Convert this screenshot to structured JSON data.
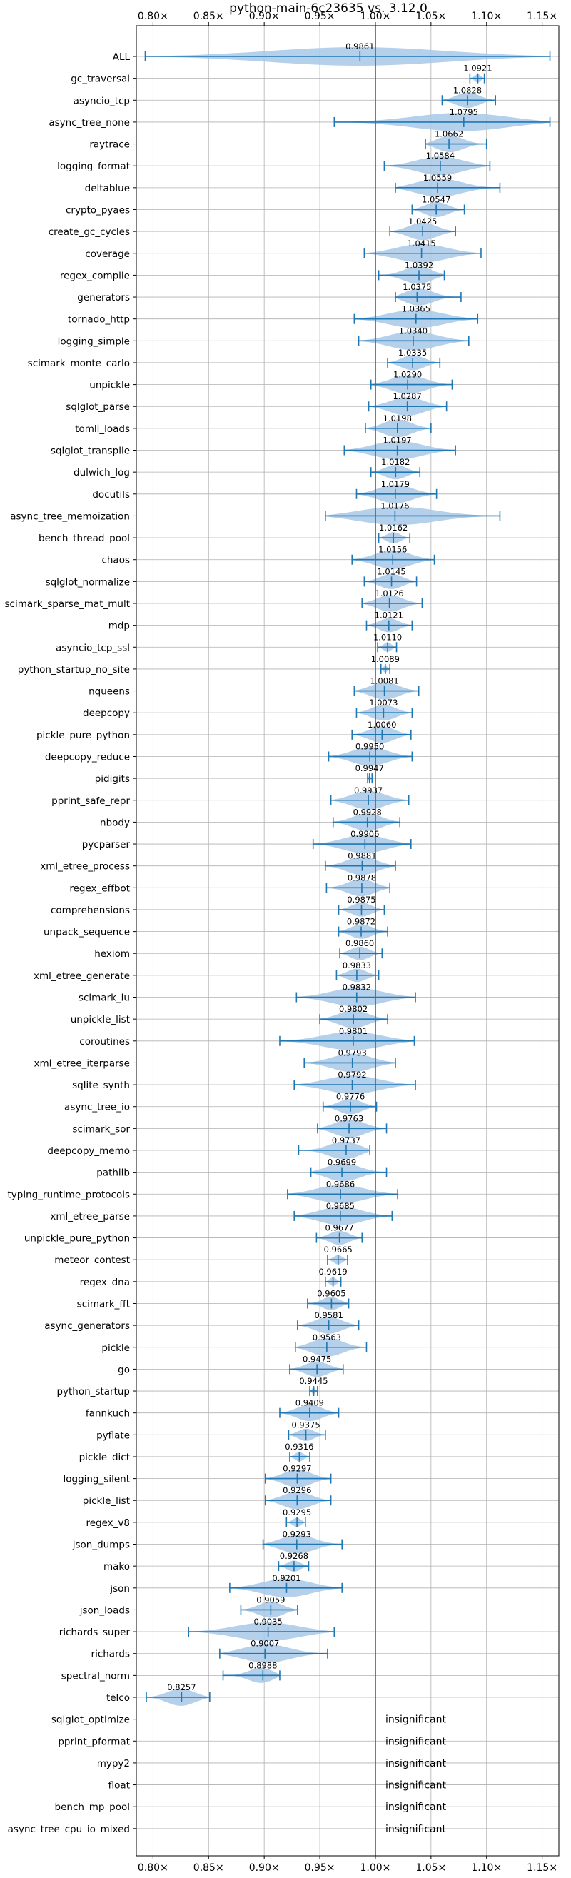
{
  "chart_data": {
    "type": "violin",
    "title": "python-main-6c23635 vs. 3.12.0",
    "xlabel": "",
    "ylabel": "",
    "xlim": [
      0.785,
      1.165
    ],
    "xticks": [
      0.8,
      0.85,
      0.9,
      0.95,
      1.0,
      1.05,
      1.1,
      1.15
    ],
    "xtick_labels": [
      "0.80×",
      "0.85×",
      "0.90×",
      "0.95×",
      "1.00×",
      "1.05×",
      "1.10×",
      "1.15×"
    ],
    "reference_line": 1.0,
    "grid": true,
    "colors": {
      "violin": "#a8c8e6",
      "whisker": "#1f77b4",
      "reference": "#1f77b4",
      "grid": "#b0b0b0"
    },
    "insignificant_label": "insignificant",
    "benchmarks": [
      {
        "name": "ALL",
        "label": "0.9861",
        "value": 0.9861,
        "min": 0.793,
        "max": 1.157
      },
      {
        "name": "gc_traversal",
        "label": "1.0921",
        "value": 1.0921,
        "min": 1.085,
        "max": 1.098
      },
      {
        "name": "asyncio_tcp",
        "label": "1.0828",
        "value": 1.0828,
        "min": 1.06,
        "max": 1.108
      },
      {
        "name": "async_tree_none",
        "label": "1.0795",
        "value": 1.0795,
        "min": 0.963,
        "max": 1.157
      },
      {
        "name": "raytrace",
        "label": "1.0662",
        "value": 1.0662,
        "min": 1.045,
        "max": 1.1
      },
      {
        "name": "logging_format",
        "label": "1.0584",
        "value": 1.0584,
        "min": 1.008,
        "max": 1.103
      },
      {
        "name": "deltablue",
        "label": "1.0559",
        "value": 1.0559,
        "min": 1.018,
        "max": 1.112
      },
      {
        "name": "crypto_pyaes",
        "label": "1.0547",
        "value": 1.0547,
        "min": 1.033,
        "max": 1.08
      },
      {
        "name": "create_gc_cycles",
        "label": "1.0425",
        "value": 1.0425,
        "min": 1.013,
        "max": 1.072
      },
      {
        "name": "coverage",
        "label": "1.0415",
        "value": 1.0415,
        "min": 0.99,
        "max": 1.095
      },
      {
        "name": "regex_compile",
        "label": "1.0392",
        "value": 1.0392,
        "min": 1.003,
        "max": 1.062
      },
      {
        "name": "generators",
        "label": "1.0375",
        "value": 1.0375,
        "min": 1.018,
        "max": 1.077
      },
      {
        "name": "tornado_http",
        "label": "1.0365",
        "value": 1.0365,
        "min": 0.981,
        "max": 1.092
      },
      {
        "name": "logging_simple",
        "label": "1.0340",
        "value": 1.034,
        "min": 0.985,
        "max": 1.084
      },
      {
        "name": "scimark_monte_carlo",
        "label": "1.0335",
        "value": 1.0335,
        "min": 1.011,
        "max": 1.058
      },
      {
        "name": "unpickle",
        "label": "1.0290",
        "value": 1.029,
        "min": 0.996,
        "max": 1.069
      },
      {
        "name": "sqlglot_parse",
        "label": "1.0287",
        "value": 1.0287,
        "min": 0.994,
        "max": 1.064
      },
      {
        "name": "tomli_loads",
        "label": "1.0198",
        "value": 1.0198,
        "min": 0.991,
        "max": 1.05
      },
      {
        "name": "sqlglot_transpile",
        "label": "1.0197",
        "value": 1.0197,
        "min": 0.972,
        "max": 1.072
      },
      {
        "name": "dulwich_log",
        "label": "1.0182",
        "value": 1.0182,
        "min": 0.996,
        "max": 1.04
      },
      {
        "name": "docutils",
        "label": "1.0179",
        "value": 1.0179,
        "min": 0.983,
        "max": 1.055
      },
      {
        "name": "async_tree_memoization",
        "label": "1.0176",
        "value": 1.0176,
        "min": 0.955,
        "max": 1.112
      },
      {
        "name": "bench_thread_pool",
        "label": "1.0162",
        "value": 1.0162,
        "min": 1.003,
        "max": 1.031
      },
      {
        "name": "chaos",
        "label": "1.0156",
        "value": 1.0156,
        "min": 0.979,
        "max": 1.053
      },
      {
        "name": "sqlglot_normalize",
        "label": "1.0145",
        "value": 1.0145,
        "min": 0.99,
        "max": 1.037
      },
      {
        "name": "scimark_sparse_mat_mult",
        "label": "1.0126",
        "value": 1.0126,
        "min": 0.988,
        "max": 1.042
      },
      {
        "name": "mdp",
        "label": "1.0121",
        "value": 1.0121,
        "min": 0.992,
        "max": 1.033
      },
      {
        "name": "asyncio_tcp_ssl",
        "label": "1.0110",
        "value": 1.011,
        "min": 1.002,
        "max": 1.019
      },
      {
        "name": "python_startup_no_site",
        "label": "1.0089",
        "value": 1.0089,
        "min": 1.005,
        "max": 1.013
      },
      {
        "name": "nqueens",
        "label": "1.0081",
        "value": 1.0081,
        "min": 0.981,
        "max": 1.039
      },
      {
        "name": "deepcopy",
        "label": "1.0073",
        "value": 1.0073,
        "min": 0.983,
        "max": 1.033
      },
      {
        "name": "pickle_pure_python",
        "label": "1.0060",
        "value": 1.006,
        "min": 0.979,
        "max": 1.032
      },
      {
        "name": "deepcopy_reduce",
        "label": "0.9950",
        "value": 0.995,
        "min": 0.958,
        "max": 1.033
      },
      {
        "name": "pidigits",
        "label": "0.9947",
        "value": 0.9947,
        "min": 0.993,
        "max": 0.997
      },
      {
        "name": "pprint_safe_repr",
        "label": "0.9937",
        "value": 0.9937,
        "min": 0.96,
        "max": 1.03
      },
      {
        "name": "nbody",
        "label": "0.9928",
        "value": 0.9928,
        "min": 0.962,
        "max": 1.022
      },
      {
        "name": "pycparser",
        "label": "0.9906",
        "value": 0.9906,
        "min": 0.944,
        "max": 1.032
      },
      {
        "name": "xml_etree_process",
        "label": "0.9881",
        "value": 0.9881,
        "min": 0.955,
        "max": 1.018
      },
      {
        "name": "regex_effbot",
        "label": "0.9878",
        "value": 0.9878,
        "min": 0.956,
        "max": 1.013
      },
      {
        "name": "comprehensions",
        "label": "0.9875",
        "value": 0.9875,
        "min": 0.967,
        "max": 1.008
      },
      {
        "name": "unpack_sequence",
        "label": "0.9872",
        "value": 0.9872,
        "min": 0.967,
        "max": 1.011
      },
      {
        "name": "hexiom",
        "label": "0.9860",
        "value": 0.986,
        "min": 0.968,
        "max": 1.006
      },
      {
        "name": "xml_etree_generate",
        "label": "0.9833",
        "value": 0.9833,
        "min": 0.965,
        "max": 1.003
      },
      {
        "name": "scimark_lu",
        "label": "0.9832",
        "value": 0.9832,
        "min": 0.929,
        "max": 1.036
      },
      {
        "name": "unpickle_list",
        "label": "0.9802",
        "value": 0.9802,
        "min": 0.95,
        "max": 1.011
      },
      {
        "name": "coroutines",
        "label": "0.9801",
        "value": 0.9801,
        "min": 0.914,
        "max": 1.035
      },
      {
        "name": "xml_etree_iterparse",
        "label": "0.9793",
        "value": 0.9793,
        "min": 0.936,
        "max": 1.018
      },
      {
        "name": "sqlite_synth",
        "label": "0.9792",
        "value": 0.9792,
        "min": 0.927,
        "max": 1.036
      },
      {
        "name": "async_tree_io",
        "label": "0.9776",
        "value": 0.9776,
        "min": 0.953,
        "max": 1.001
      },
      {
        "name": "scimark_sor",
        "label": "0.9763",
        "value": 0.9763,
        "min": 0.948,
        "max": 1.01
      },
      {
        "name": "deepcopy_memo",
        "label": "0.9737",
        "value": 0.9737,
        "min": 0.931,
        "max": 0.995
      },
      {
        "name": "pathlib",
        "label": "0.9699",
        "value": 0.9699,
        "min": 0.942,
        "max": 1.01
      },
      {
        "name": "typing_runtime_protocols",
        "label": "0.9686",
        "value": 0.9686,
        "min": 0.921,
        "max": 1.02
      },
      {
        "name": "xml_etree_parse",
        "label": "0.9685",
        "value": 0.9685,
        "min": 0.927,
        "max": 1.015
      },
      {
        "name": "unpickle_pure_python",
        "label": "0.9677",
        "value": 0.9677,
        "min": 0.947,
        "max": 0.988
      },
      {
        "name": "meteor_contest",
        "label": "0.9665",
        "value": 0.9665,
        "min": 0.957,
        "max": 0.975
      },
      {
        "name": "regex_dna",
        "label": "0.9619",
        "value": 0.9619,
        "min": 0.955,
        "max": 0.969
      },
      {
        "name": "scimark_fft",
        "label": "0.9605",
        "value": 0.9605,
        "min": 0.939,
        "max": 0.976
      },
      {
        "name": "async_generators",
        "label": "0.9581",
        "value": 0.9581,
        "min": 0.93,
        "max": 0.985
      },
      {
        "name": "pickle",
        "label": "0.9563",
        "value": 0.9563,
        "min": 0.928,
        "max": 0.992
      },
      {
        "name": "go",
        "label": "0.9475",
        "value": 0.9475,
        "min": 0.923,
        "max": 0.971
      },
      {
        "name": "python_startup",
        "label": "0.9445",
        "value": 0.9445,
        "min": 0.941,
        "max": 0.948
      },
      {
        "name": "fannkuch",
        "label": "0.9409",
        "value": 0.9409,
        "min": 0.914,
        "max": 0.967
      },
      {
        "name": "pyflate",
        "label": "0.9375",
        "value": 0.9375,
        "min": 0.922,
        "max": 0.955
      },
      {
        "name": "pickle_dict",
        "label": "0.9316",
        "value": 0.9316,
        "min": 0.923,
        "max": 0.941
      },
      {
        "name": "logging_silent",
        "label": "0.9297",
        "value": 0.9297,
        "min": 0.901,
        "max": 0.96
      },
      {
        "name": "pickle_list",
        "label": "0.9296",
        "value": 0.9296,
        "min": 0.901,
        "max": 0.96
      },
      {
        "name": "regex_v8",
        "label": "0.9295",
        "value": 0.9295,
        "min": 0.92,
        "max": 0.937
      },
      {
        "name": "json_dumps",
        "label": "0.9293",
        "value": 0.9293,
        "min": 0.899,
        "max": 0.97
      },
      {
        "name": "mako",
        "label": "0.9268",
        "value": 0.9268,
        "min": 0.913,
        "max": 0.94
      },
      {
        "name": "json",
        "label": "0.9201",
        "value": 0.9201,
        "min": 0.869,
        "max": 0.97
      },
      {
        "name": "json_loads",
        "label": "0.9059",
        "value": 0.9059,
        "min": 0.879,
        "max": 0.93
      },
      {
        "name": "richards_super",
        "label": "0.9035",
        "value": 0.9035,
        "min": 0.832,
        "max": 0.963
      },
      {
        "name": "richards",
        "label": "0.9007",
        "value": 0.9007,
        "min": 0.86,
        "max": 0.957
      },
      {
        "name": "spectral_norm",
        "label": "0.8988",
        "value": 0.8988,
        "min": 0.863,
        "max": 0.914
      },
      {
        "name": "telco",
        "label": "0.8257",
        "value": 0.8257,
        "min": 0.794,
        "max": 0.851
      },
      {
        "name": "sqlglot_optimize",
        "label": "",
        "value": null,
        "min": null,
        "max": null
      },
      {
        "name": "pprint_pformat",
        "label": "",
        "value": null,
        "min": null,
        "max": null
      },
      {
        "name": "mypy2",
        "label": "",
        "value": null,
        "min": null,
        "max": null
      },
      {
        "name": "float",
        "label": "",
        "value": null,
        "min": null,
        "max": null
      },
      {
        "name": "bench_mp_pool",
        "label": "",
        "value": null,
        "min": null,
        "max": null
      },
      {
        "name": "async_tree_cpu_io_mixed",
        "label": "",
        "value": null,
        "min": null,
        "max": null
      }
    ]
  }
}
